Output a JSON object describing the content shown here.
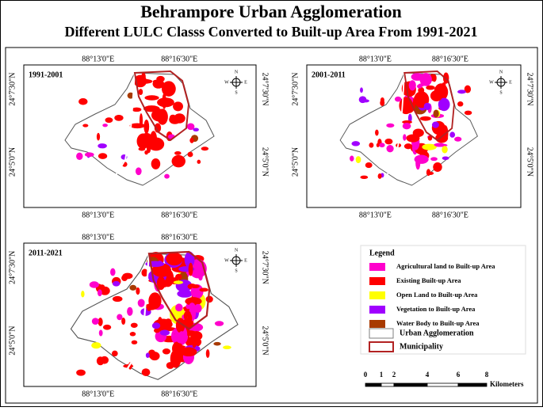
{
  "title": "Behrampore Urban Agglomeration",
  "subtitle": "Different LULC Classs Converted to Built-up Area From 1991-2021",
  "panels": [
    {
      "label": "1991-2001",
      "top_ticks": [
        "88°13'0\"E",
        "88°16'30\"E"
      ],
      "bottom_ticks": [
        "88°13'0\"E",
        "88°16'30\"E"
      ],
      "left_ticks": [
        "24°7'30\"N",
        "24°5'0\"N"
      ],
      "right_ticks": [
        "24°7'30\"N",
        "24°5'0\"N"
      ]
    },
    {
      "label": "2001-2011",
      "top_ticks": [
        "88°13'0\"E",
        "88°16'30\"E"
      ],
      "bottom_ticks": [
        "88°13'0\"E",
        "88°16'30\"E"
      ],
      "left_ticks": [
        "24°7'30\"N",
        "24°5'0\"N"
      ],
      "right_ticks": [
        "24°7'30\"N",
        "24°5'0\"N"
      ]
    },
    {
      "label": "2011-2021",
      "top_ticks": [
        "88°13'0\"E",
        "88°16'30\"E"
      ],
      "bottom_ticks": [
        "88°13'0\"E",
        "88°16'30\"E"
      ],
      "left_ticks": [
        "24°7'30\"N",
        "24°5'0\"N"
      ],
      "right_ticks": [
        "24°7'30\"N",
        "24°5'0\"N"
      ]
    }
  ],
  "compass": {
    "n": "N",
    "s": "S",
    "e": "E",
    "w": "W"
  },
  "legend": {
    "title": "Legend",
    "items": [
      {
        "label": "Agricultural land to Built-up Area",
        "color": "#ff00cc"
      },
      {
        "label": "Existing Built-up Area",
        "color": "#ff0000"
      },
      {
        "label": "Open Land to Built-up Area",
        "color": "#ffff00"
      },
      {
        "label": "Vegetation to Built-up Area",
        "color": "#a000ff"
      },
      {
        "label": "Water Body to Built-up Area",
        "color": "#a83a00"
      }
    ],
    "boundaries": [
      {
        "label": "Urban Agglomeration",
        "color": "#7f7f7f"
      },
      {
        "label": "Municipality",
        "color": "#b22222"
      }
    ]
  },
  "scale_bar": {
    "ticks": [
      "0",
      "1",
      "2",
      "4",
      "6",
      "8"
    ],
    "unit": "Kilometers"
  }
}
